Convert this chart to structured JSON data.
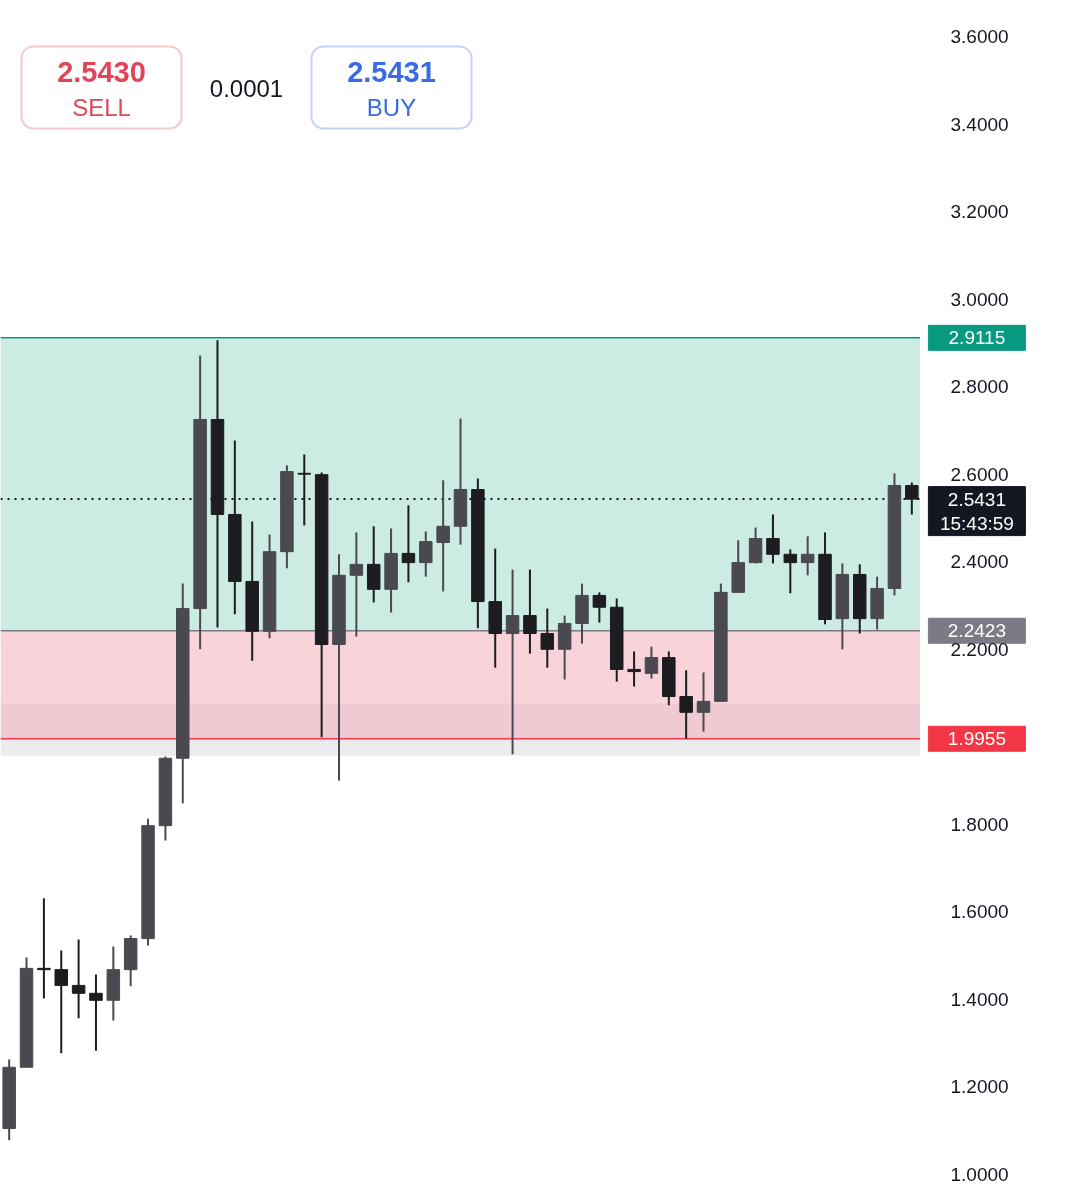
{
  "chart_data": {
    "type": "candlestick",
    "categories": [
      null,
      null,
      null,
      null,
      null,
      null,
      null,
      null,
      null,
      null,
      null,
      null,
      null,
      null,
      null,
      null,
      null,
      null,
      null,
      null,
      null,
      null,
      null,
      null,
      null,
      null,
      null,
      null,
      null,
      null,
      null,
      null,
      null,
      null,
      null,
      null,
      null,
      null,
      null,
      null,
      null,
      null,
      null,
      null,
      null,
      null,
      null,
      null,
      null,
      null,
      null,
      null,
      null
    ],
    "ohlc": [
      [
        1.105,
        1.263,
        1.078,
        1.245
      ],
      [
        1.245,
        1.496,
        1.245,
        1.471
      ],
      [
        1.471,
        1.631,
        1.402,
        1.468
      ],
      [
        1.468,
        1.512,
        1.277,
        1.432
      ],
      [
        1.432,
        1.537,
        1.357,
        1.414
      ],
      [
        1.414,
        1.457,
        1.283,
        1.398
      ],
      [
        1.398,
        1.521,
        1.352,
        1.468
      ],
      [
        1.468,
        1.546,
        1.43,
        1.539
      ],
      [
        1.539,
        1.813,
        1.523,
        1.797
      ],
      [
        1.797,
        1.955,
        1.763,
        1.951
      ],
      [
        1.951,
        2.35,
        1.848,
        2.293
      ],
      [
        2.293,
        2.871,
        2.2,
        2.725
      ],
      [
        2.725,
        2.906,
        2.25,
        2.508
      ],
      [
        2.508,
        2.677,
        2.28,
        2.355
      ],
      [
        2.355,
        2.492,
        2.174,
        2.241
      ],
      [
        2.241,
        2.462,
        2.225,
        2.423
      ],
      [
        2.423,
        2.62,
        2.385,
        2.606
      ],
      [
        2.602,
        2.645,
        2.483,
        2.6
      ],
      [
        2.599,
        2.604,
        1.999,
        2.211
      ],
      [
        2.211,
        2.417,
        1.9,
        2.369
      ],
      [
        2.369,
        2.467,
        2.229,
        2.394
      ],
      [
        2.394,
        2.481,
        2.307,
        2.337
      ],
      [
        2.337,
        2.476,
        2.284,
        2.419
      ],
      [
        2.419,
        2.529,
        2.353,
        2.398
      ],
      [
        2.398,
        2.469,
        2.366,
        2.446
      ],
      [
        2.444,
        2.586,
        2.332,
        2.481
      ],
      [
        2.481,
        2.727,
        2.439,
        2.565
      ],
      [
        2.565,
        2.59,
        2.248,
        2.309
      ],
      [
        2.309,
        2.43,
        2.158,
        2.236
      ],
      [
        2.236,
        2.382,
        1.96,
        2.277
      ],
      [
        2.277,
        2.382,
        2.19,
        2.236
      ],
      [
        2.236,
        2.293,
        2.158,
        2.2
      ],
      [
        2.2,
        2.277,
        2.131,
        2.259
      ],
      [
        2.259,
        2.35,
        2.213,
        2.323
      ],
      [
        2.323,
        2.33,
        2.261,
        2.296
      ],
      [
        2.296,
        2.316,
        2.126,
        2.154
      ],
      [
        2.154,
        2.195,
        2.115,
        2.149
      ],
      [
        2.145,
        2.206,
        2.133,
        2.181
      ],
      [
        2.181,
        2.195,
        2.072,
        2.092
      ],
      [
        2.092,
        2.152,
        1.996,
        2.056
      ],
      [
        2.056,
        2.147,
        2.012,
        2.081
      ],
      [
        2.081,
        2.35,
        2.081,
        2.33
      ],
      [
        2.33,
        2.449,
        2.33,
        2.398
      ],
      [
        2.398,
        2.478,
        2.396,
        2.453
      ],
      [
        2.453,
        2.508,
        2.396,
        2.417
      ],
      [
        2.417,
        2.428,
        2.328,
        2.398
      ],
      [
        2.398,
        2.458,
        2.369,
        2.417
      ],
      [
        2.417,
        2.467,
        2.257,
        2.268
      ],
      [
        2.27,
        2.396,
        2.2,
        2.371
      ],
      [
        2.371,
        2.394,
        2.236,
        2.27
      ],
      [
        2.27,
        2.366,
        2.245,
        2.339
      ],
      [
        2.339,
        2.602,
        2.323,
        2.574
      ],
      [
        2.574,
        2.581,
        2.508,
        2.543
      ]
    ],
    "colors": [
      "#4a4950",
      "#4a4950",
      "#1c1c21",
      "#1c1c21",
      "#1c1c21",
      "#1c1c21",
      "#4a4950",
      "#4a4950",
      "#4a4950",
      "#4a4950",
      "#4a4950",
      "#4a4950",
      "#1c1c21",
      "#1c1c21",
      "#1c1c21",
      "#4a4950",
      "#4a4950",
      "#1c1c21",
      "#1c1c21",
      "#4a4950",
      "#4a4950",
      "#1c1c21",
      "#4a4950",
      "#1c1c21",
      "#4a4950",
      "#4a4950",
      "#4a4950",
      "#1c1c21",
      "#1c1c21",
      "#4a4950",
      "#1c1c21",
      "#1c1c21",
      "#4a4950",
      "#4a4950",
      "#1c1c21",
      "#1c1c21",
      "#1c1c21",
      "#4a4950",
      "#1c1c21",
      "#1c1c21",
      "#4a4950",
      "#4a4950",
      "#4a4950",
      "#4a4950",
      "#1c1c21",
      "#1c1c21",
      "#4a4950",
      "#1c1c21",
      "#4a4950",
      "#1c1c21",
      "#4a4950",
      "#4a4950",
      "#1c1c21"
    ],
    "ylim": [
      1.0,
      3.6
    ],
    "yticks": [
      {
        "value": 1.0,
        "label": "1.0000"
      },
      {
        "value": 1.2,
        "label": "1.2000"
      },
      {
        "value": 1.4,
        "label": "1.4000"
      },
      {
        "value": 1.6,
        "label": "1.6000"
      },
      {
        "value": 1.8,
        "label": "1.8000"
      },
      {
        "value": 2.0,
        "label": null
      },
      {
        "value": 2.2,
        "label": "2.2000"
      },
      {
        "value": 2.4,
        "label": "2.4000"
      },
      {
        "value": 2.6,
        "label": "2.6000"
      },
      {
        "value": 2.8,
        "label": "2.8000"
      },
      {
        "value": 3.0,
        "label": "3.0000"
      },
      {
        "value": 3.2,
        "label": "3.2000"
      },
      {
        "value": 3.4,
        "label": "3.4000"
      },
      {
        "value": 3.6,
        "label": "3.6000"
      }
    ],
    "tick_labels": "y",
    "grid": false,
    "bands": [
      {
        "axis": "y",
        "from": 1.957,
        "to": 2.076,
        "color": "#e4e4e8"
      },
      {
        "axis": "y",
        "from": 2.2423,
        "to": 2.9115,
        "color": "#7fcdb6"
      },
      {
        "axis": "y",
        "from": 1.9955,
        "to": 2.2423,
        "color": "#f4a7b6"
      }
    ],
    "ref_lines": [
      {
        "axis": "y",
        "value": 2.5431,
        "label": "2.5431",
        "color": "#131722",
        "line_style": "dotted"
      },
      {
        "axis": "y",
        "value": 2.9115,
        "label": "2.9115",
        "color": "#089981",
        "line_style": "solid"
      },
      {
        "axis": "y",
        "value": 2.2423,
        "label": "2.2423",
        "color": "#7b7b85",
        "line_style": "solid"
      },
      {
        "axis": "y",
        "value": 1.9955,
        "label": "1.9955",
        "color": "#f23645",
        "line_style": "solid"
      }
    ],
    "annotations": [
      "2.5430",
      "SELL",
      "0.0001",
      "2.5431",
      "BUY",
      "15:43:59"
    ]
  }
}
